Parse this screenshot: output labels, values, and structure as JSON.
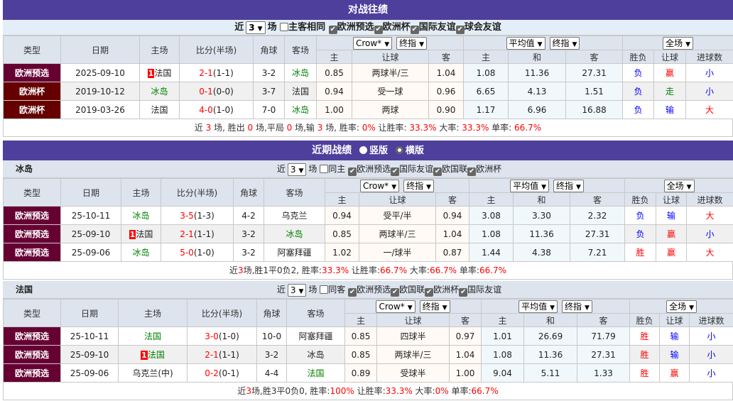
{
  "colors": {
    "purple_bar": "#4f3f9c",
    "euro_qual": "#660033",
    "euro_cup": "#660000",
    "red": "#ff0000",
    "blue": "#0000ff",
    "green": "#008000"
  },
  "result_colors": {
    "负": "#0000ff",
    "胜": "#ff0000",
    "赢": "#ff0000",
    "输": "#0000ff",
    "走": "#008000",
    "大": "#ff0000",
    "小": "#0000ff"
  },
  "header_labels": {
    "type": "类型",
    "date": "日期",
    "home": "主场",
    "score": "比分(半场)",
    "corners": "角球",
    "away": "客场",
    "h": "主",
    "line": "让球",
    "a": "客",
    "d": "和",
    "res": "胜负",
    "hres": "让球",
    "ou": "进球数"
  },
  "selects": {
    "company": "Crow*",
    "odds_type": "终指",
    "euro_company": "平均值",
    "euro_type": "终指",
    "period": "全场",
    "count": "3"
  },
  "h2h": {
    "title": "对战往绩",
    "filter": {
      "prefix": "近",
      "suffix": "场",
      "same_label": "主客相同",
      "same_checked": false,
      "leagues": [
        "欧洲预选",
        "欧洲杯",
        "国际友谊",
        "球会友谊"
      ]
    },
    "rows": [
      {
        "type": "欧洲预选",
        "type_color": "#660033",
        "date": "2025-09-10",
        "rank": "1",
        "home": "法国",
        "home_green": false,
        "score": "2-1",
        "half": "(1-1)",
        "corners": "3-2",
        "away": "冰岛",
        "away_green": true,
        "odds": [
          "0.85",
          "两球半/三",
          "1.04"
        ],
        "euro": [
          "1.08",
          "11.36",
          "27.31"
        ],
        "res": "负",
        "hres": "赢",
        "ou": "小"
      },
      {
        "type": "欧洲杯",
        "type_color": "#660000",
        "date": "2019-10-12",
        "rank": "",
        "home": "冰岛",
        "home_green": true,
        "score": "0-1",
        "half": "(0-0)",
        "corners": "3-7",
        "away": "法国",
        "away_green": false,
        "odds": [
          "0.94",
          "受一球",
          "0.96"
        ],
        "euro": [
          "6.65",
          "4.13",
          "1.51"
        ],
        "res": "负",
        "hres": "走",
        "ou": "小"
      },
      {
        "type": "欧洲杯",
        "type_color": "#660000",
        "date": "2019-03-26",
        "rank": "",
        "home": "法国",
        "home_green": false,
        "score": "4-0",
        "half": "(1-0)",
        "corners": "7-0",
        "away": "冰岛",
        "away_green": true,
        "odds": [
          "1.00",
          "两球",
          "0.90"
        ],
        "euro": [
          "1.17",
          "6.96",
          "16.88"
        ],
        "res": "负",
        "hres": "输",
        "ou": "大"
      }
    ],
    "summary": [
      {
        "t": "近 "
      },
      {
        "t": "3",
        "r": 1
      },
      {
        "t": " 场, 胜出 "
      },
      {
        "t": "0",
        "r": 1
      },
      {
        "t": " 场,平局 "
      },
      {
        "t": "0",
        "r": 1
      },
      {
        "t": " 场,输 "
      },
      {
        "t": "3",
        "r": 1
      },
      {
        "t": " 场, 胜率: "
      },
      {
        "t": "0%",
        "r": 1
      },
      {
        "t": " 让胜率: "
      },
      {
        "t": "33.3%",
        "r": 1
      },
      {
        "t": " 大率: "
      },
      {
        "t": "33.3%",
        "r": 1
      },
      {
        "t": " 单率: "
      },
      {
        "t": "66.7%",
        "r": 1
      }
    ]
  },
  "recent": {
    "title": "近期战绩",
    "layout_options": [
      {
        "label": "竖版",
        "selected": false
      },
      {
        "label": "横版",
        "selected": true
      }
    ],
    "teams": [
      {
        "name": "冰岛",
        "filter": {
          "prefix": "近",
          "suffix": "场",
          "same_label": "同主",
          "same_checked": false,
          "leagues": [
            "欧洲预选",
            "国际友谊",
            "欧国联",
            "欧洲杯"
          ]
        },
        "rows": [
          {
            "type": "欧洲预选",
            "type_color": "#660033",
            "date": "25-10-11",
            "rank": "",
            "home": "冰岛",
            "home_green": true,
            "score": "3-5",
            "half": "(1-3)",
            "corners": "4-2",
            "away": "乌克兰",
            "away_green": false,
            "odds": [
              "0.94",
              "受平/半",
              "0.94"
            ],
            "euro": [
              "3.08",
              "3.30",
              "2.32"
            ],
            "res": "负",
            "hres": "输",
            "ou": "大"
          },
          {
            "type": "欧洲预选",
            "type_color": "#660033",
            "date": "25-09-10",
            "rank": "1",
            "home": "法国",
            "home_green": false,
            "score": "2-1",
            "half": "(1-1)",
            "corners": "3-2",
            "away": "冰岛",
            "away_green": true,
            "odds": [
              "0.85",
              "两球半/三",
              "1.04"
            ],
            "euro": [
              "1.08",
              "11.36",
              "27.31"
            ],
            "res": "负",
            "hres": "赢",
            "ou": "小"
          },
          {
            "type": "欧洲预选",
            "type_color": "#660033",
            "date": "25-09-06",
            "rank": "",
            "home": "冰岛",
            "home_green": true,
            "score": "5-0",
            "half": "(1-0)",
            "corners": "3-2",
            "away": "阿塞拜疆",
            "away_green": false,
            "odds": [
              "1.02",
              "一/球半",
              "0.87"
            ],
            "euro": [
              "1.44",
              "4.38",
              "7.21"
            ],
            "res": "胜",
            "hres": "赢",
            "ou": "大"
          }
        ],
        "summary": [
          {
            "t": "近"
          },
          {
            "t": "3",
            "r": 1
          },
          {
            "t": "场,胜1平0负2, 胜率:"
          },
          {
            "t": "33.3%",
            "r": 1
          },
          {
            "t": " 让胜率:"
          },
          {
            "t": "66.7%",
            "r": 1
          },
          {
            "t": " 大率:"
          },
          {
            "t": "66.7%",
            "r": 1
          },
          {
            "t": " 单率:"
          },
          {
            "t": "66.7%",
            "r": 1
          }
        ]
      },
      {
        "name": "法国",
        "filter": {
          "prefix": "近",
          "suffix": "场",
          "same_label": "同客",
          "same_checked": false,
          "leagues": [
            "欧洲预选",
            "欧国联",
            "欧洲杯",
            "国际友谊"
          ]
        },
        "rows": [
          {
            "type": "欧洲预选",
            "type_color": "#660033",
            "date": "25-10-11",
            "rank": "",
            "home": "法国",
            "home_green": true,
            "score": "3-0",
            "half": "(1-0)",
            "corners": "10-0",
            "away": "阿塞拜疆",
            "away_green": false,
            "odds": [
              "0.85",
              "四球半",
              "0.97"
            ],
            "euro": [
              "1.01",
              "26.69",
              "71.79"
            ],
            "res": "胜",
            "hres": "输",
            "ou": "小"
          },
          {
            "type": "欧洲预选",
            "type_color": "#660033",
            "date": "25-09-10",
            "rank": "1",
            "home": "法国",
            "home_green": true,
            "score": "2-1",
            "half": "(1-1)",
            "corners": "3-2",
            "away": "冰岛",
            "away_green": false,
            "odds": [
              "0.85",
              "两球半/三",
              "1.04"
            ],
            "euro": [
              "1.08",
              "11.36",
              "27.31"
            ],
            "res": "胜",
            "hres": "输",
            "ou": "小"
          },
          {
            "type": "欧洲预选",
            "type_color": "#660033",
            "date": "25-09-06",
            "rank": "",
            "home": "乌克兰(中)",
            "home_green": false,
            "score": "0-2",
            "half": "(0-1)",
            "corners": "4-4",
            "away": "法国",
            "away_green": true,
            "odds": [
              "0.89",
              "受球半",
              "1.00"
            ],
            "euro": [
              "9.04",
              "5.11",
              "1.33"
            ],
            "res": "胜",
            "hres": "赢",
            "ou": "小"
          }
        ],
        "summary": [
          {
            "t": "近"
          },
          {
            "t": "3",
            "r": 1
          },
          {
            "t": "场,胜3平0负0, 胜率:"
          },
          {
            "t": "100%",
            "r": 1
          },
          {
            "t": " 让胜率:"
          },
          {
            "t": "33.3%",
            "r": 1
          },
          {
            "t": " 大率:"
          },
          {
            "t": "0%",
            "r": 1
          },
          {
            "t": " 单率:"
          },
          {
            "t": "66.7%",
            "r": 1
          }
        ]
      }
    ]
  }
}
